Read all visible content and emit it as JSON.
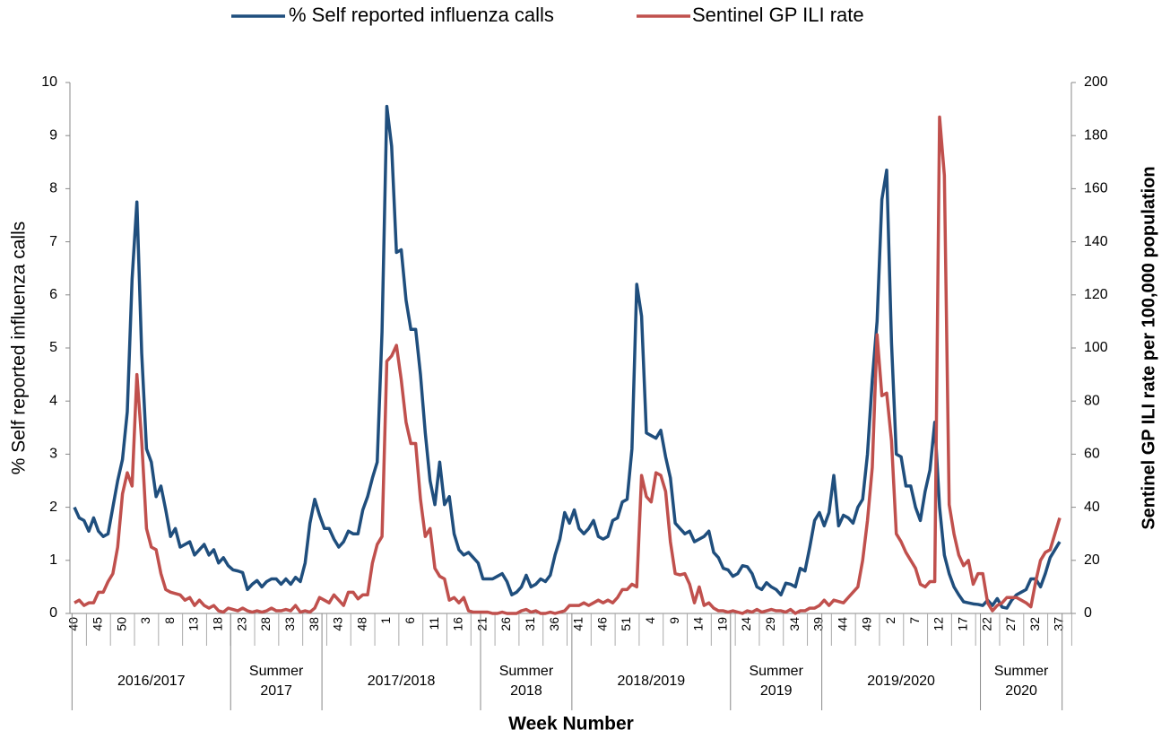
{
  "chart_data": {
    "type": "line",
    "y_label": "% Self reported influenza calls",
    "y2_label": "Sentinel GP ILI rate per 100,000 population",
    "x_label": "Week Number",
    "categories": [
      "40",
      null,
      null,
      null,
      null,
      "45",
      null,
      null,
      null,
      null,
      "50",
      null,
      null,
      null,
      null,
      "3",
      null,
      null,
      null,
      null,
      "8",
      null,
      null,
      null,
      null,
      "13",
      null,
      null,
      null,
      null,
      "18",
      null,
      null,
      null,
      null,
      "23",
      null,
      null,
      null,
      null,
      "28",
      null,
      null,
      null,
      null,
      "33",
      null,
      null,
      null,
      null,
      "38",
      null,
      null,
      null,
      null,
      "43",
      null,
      null,
      null,
      null,
      "48",
      null,
      null,
      null,
      null,
      "1",
      null,
      null,
      null,
      null,
      "6",
      null,
      null,
      null,
      null,
      "11",
      null,
      null,
      null,
      null,
      "16",
      null,
      null,
      null,
      null,
      "21",
      null,
      null,
      null,
      null,
      "26",
      null,
      null,
      null,
      null,
      "31",
      null,
      null,
      null,
      null,
      "36",
      null,
      null,
      null,
      null,
      "41",
      null,
      null,
      null,
      null,
      "46",
      null,
      null,
      null,
      null,
      "51",
      null,
      null,
      null,
      null,
      "4",
      null,
      null,
      null,
      null,
      "9",
      null,
      null,
      null,
      null,
      "14",
      null,
      null,
      null,
      null,
      "19",
      null,
      null,
      null,
      null,
      "24",
      null,
      null,
      null,
      null,
      "29",
      null,
      null,
      null,
      null,
      "34",
      null,
      null,
      null,
      null,
      "39",
      null,
      null,
      null,
      null,
      "44",
      null,
      null,
      null,
      null,
      "49",
      null,
      null,
      null,
      null,
      "2",
      null,
      null,
      null,
      null,
      "7",
      null,
      null,
      null,
      null,
      "12",
      null,
      null,
      null,
      null,
      "17",
      null,
      null,
      null,
      null,
      "22",
      null,
      null,
      null,
      null,
      "27",
      null,
      null,
      null,
      null,
      "32",
      null,
      null,
      null,
      null,
      "37"
    ],
    "groups": [
      {
        "label": "2016/2017",
        "count": 33
      },
      {
        "label": "Summer 2017",
        "count": 19
      },
      {
        "label": "2017/2018",
        "count": 33
      },
      {
        "label": "Summer 2018",
        "count": 19
      },
      {
        "label": "2018/2019",
        "count": 33
      },
      {
        "label": "Summer 2019",
        "count": 19
      },
      {
        "label": "2019/2020",
        "count": 33
      },
      {
        "label": "Summer 2020",
        "count": 17
      }
    ],
    "series": [
      {
        "name": "% Self reported influenza calls",
        "color": "#1f4e7d",
        "axis": "y",
        "values": [
          2.0,
          1.8,
          1.75,
          1.55,
          1.8,
          1.55,
          1.45,
          1.5,
          2.0,
          2.5,
          2.9,
          3.8,
          6.3,
          7.75,
          4.9,
          3.1,
          2.85,
          2.2,
          2.4,
          1.95,
          1.45,
          1.6,
          1.25,
          1.3,
          1.35,
          1.1,
          1.2,
          1.3,
          1.1,
          1.2,
          0.95,
          1.05,
          0.9,
          0.82,
          0.8,
          0.77,
          0.45,
          0.55,
          0.62,
          0.5,
          0.6,
          0.65,
          0.65,
          0.55,
          0.65,
          0.55,
          0.68,
          0.6,
          0.95,
          1.7,
          2.15,
          1.85,
          1.6,
          1.6,
          1.4,
          1.25,
          1.35,
          1.55,
          1.5,
          1.5,
          1.95,
          2.2,
          2.55,
          2.85,
          5.3,
          9.55,
          8.8,
          6.8,
          6.85,
          5.9,
          5.35,
          5.35,
          4.5,
          3.4,
          2.5,
          2.05,
          2.85,
          2.05,
          2.2,
          1.5,
          1.2,
          1.1,
          1.15,
          1.05,
          0.95,
          0.65,
          0.65,
          0.65,
          0.7,
          0.75,
          0.6,
          0.35,
          0.4,
          0.5,
          0.72,
          0.5,
          0.55,
          0.65,
          0.6,
          0.72,
          1.1,
          1.4,
          1.9,
          1.7,
          1.95,
          1.6,
          1.5,
          1.6,
          1.75,
          1.45,
          1.4,
          1.45,
          1.75,
          1.8,
          2.1,
          2.15,
          3.1,
          6.2,
          5.6,
          3.4,
          3.35,
          3.3,
          3.45,
          2.95,
          2.55,
          1.7,
          1.6,
          1.5,
          1.55,
          1.35,
          1.4,
          1.45,
          1.55,
          1.15,
          1.05,
          0.85,
          0.82,
          0.7,
          0.75,
          0.9,
          0.88,
          0.75,
          0.5,
          0.45,
          0.58,
          0.5,
          0.45,
          0.35,
          0.57,
          0.55,
          0.5,
          0.85,
          0.8,
          1.25,
          1.75,
          1.9,
          1.65,
          1.9,
          2.6,
          1.65,
          1.85,
          1.8,
          1.7,
          2.0,
          2.15,
          3.0,
          4.4,
          5.5,
          7.8,
          8.35,
          5.1,
          3.0,
          2.95,
          2.4,
          2.4,
          2.0,
          1.75,
          2.3,
          2.7,
          3.6,
          2.0,
          1.1,
          0.75,
          0.5,
          0.35,
          0.22,
          0.2,
          0.18,
          0.17,
          0.15,
          0.25,
          0.15,
          0.28,
          0.12,
          0.1,
          0.25,
          0.35,
          0.4,
          0.45,
          0.65,
          0.65,
          0.5,
          0.75,
          1.05,
          1.2,
          1.35
        ]
      },
      {
        "name": "Sentinel GP ILI rate",
        "color": "#c0504d",
        "axis": "y2",
        "values": [
          4,
          5,
          3,
          4,
          4,
          8,
          8,
          12,
          15,
          25,
          45,
          53,
          48,
          90,
          65,
          32,
          25,
          24,
          15,
          9,
          8,
          7.5,
          7,
          5,
          6,
          3,
          5,
          3,
          2,
          3,
          1,
          0.5,
          2,
          1.5,
          1,
          2,
          1,
          0.5,
          1,
          0.5,
          1,
          2,
          1,
          1,
          1.5,
          1,
          3,
          0.5,
          1,
          0.5,
          2,
          6,
          5,
          4,
          7,
          5,
          3,
          8,
          8,
          5.5,
          7,
          7,
          19,
          26,
          29,
          95,
          97,
          101,
          88,
          72,
          64,
          64,
          43,
          29,
          32,
          17,
          14,
          13,
          5,
          6,
          4,
          6,
          1,
          0.5,
          0.5,
          0.5,
          0.5,
          0,
          0,
          0.5,
          0,
          0,
          0,
          1,
          1.5,
          0.5,
          1,
          0,
          0,
          0.5,
          0,
          0.5,
          1,
          3,
          3,
          3,
          4,
          3,
          4,
          5,
          4,
          5,
          4,
          6,
          9,
          9,
          11,
          10,
          52,
          44,
          42,
          53,
          52,
          46,
          27,
          15,
          14.5,
          15,
          11,
          4,
          10,
          3,
          4,
          2,
          1,
          1,
          0.5,
          1,
          0.5,
          0,
          1,
          0.5,
          1.5,
          0.5,
          1,
          1.5,
          1,
          1,
          0.5,
          1.5,
          0,
          1,
          1,
          2,
          2,
          3,
          5,
          3,
          5,
          4.5,
          4,
          6,
          8,
          10,
          20,
          35,
          55,
          105,
          82,
          83,
          65,
          30,
          27,
          23,
          20,
          17,
          11,
          10,
          12,
          12,
          187,
          165,
          41,
          30,
          22,
          18,
          20,
          11,
          15,
          15,
          4,
          1,
          3,
          4,
          6,
          6,
          6,
          5,
          4,
          2.5,
          12,
          20,
          23,
          24,
          30,
          36
        ]
      }
    ],
    "ylim": [
      0,
      10
    ],
    "yticks": [
      0,
      1,
      2,
      3,
      4,
      5,
      6,
      7,
      8,
      9,
      10
    ],
    "y2lim": [
      0,
      200
    ],
    "y2ticks": [
      0,
      20,
      40,
      60,
      80,
      100,
      120,
      140,
      160,
      180,
      200
    ],
    "legend": "top"
  }
}
